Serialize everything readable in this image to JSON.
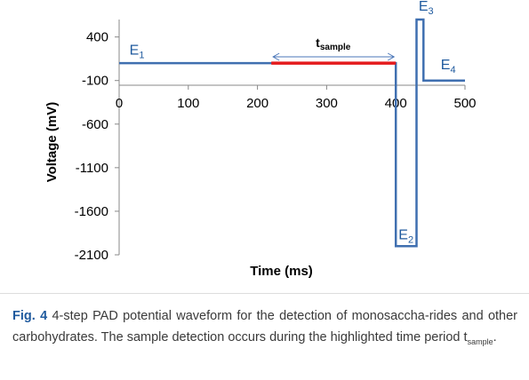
{
  "chart_data": {
    "type": "line",
    "xlabel": "Time (ms)",
    "ylabel": "Voltage (mV)",
    "xlim": [
      0,
      500
    ],
    "ylim": [
      -2100,
      600
    ],
    "x_ticks": [
      0,
      100,
      200,
      300,
      400,
      500
    ],
    "y_ticks": [
      400,
      -100,
      -600,
      -1100,
      -1600,
      -2100
    ],
    "grid": false,
    "series": [
      {
        "color": "#3f6fb0",
        "x": [
          0,
          400,
          400,
          430,
          430,
          440,
          440,
          500
        ],
        "y": [
          100,
          100,
          -2000,
          -2000,
          600,
          600,
          -100,
          -100
        ]
      }
    ],
    "highlight": {
      "x": [
        220,
        400
      ],
      "y": 100,
      "color": "#e41a1c"
    },
    "annotations": {
      "sample": {
        "main": "t",
        "sub": "sample",
        "x": [
          220,
          400
        ]
      },
      "steps": [
        {
          "main": "E",
          "sub": "1",
          "x": 15,
          "y": 200
        },
        {
          "main": "E",
          "sub": "2",
          "x": 404,
          "y": -1920
        },
        {
          "main": "E",
          "sub": "3",
          "x": 433,
          "y": 700
        },
        {
          "main": "E",
          "sub": "4",
          "x": 465,
          "y": 30
        }
      ]
    }
  },
  "caption": {
    "fig_label": "Fig. 4",
    "text": " 4-step PAD potential waveform for the detection of monosaccha-rides and other carbohydrates. The sample detection occurs during the highlighted time period t",
    "sub": "sample",
    "end": "."
  }
}
